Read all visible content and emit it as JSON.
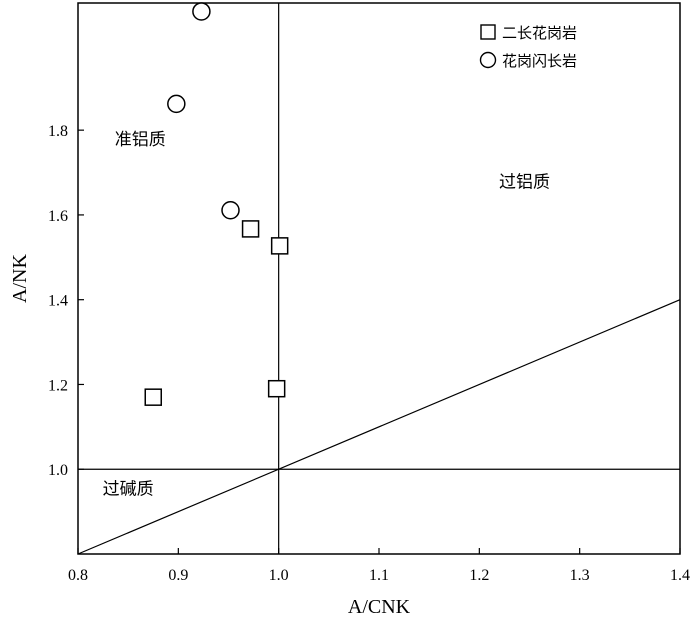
{
  "chart_data": {
    "type": "scatter",
    "xlabel": "A/CNK",
    "ylabel": "A/NK",
    "xlim": [
      0.8,
      1.4
    ],
    "ylim": [
      0.8,
      2.1
    ],
    "x_ticks": [
      0.8,
      0.9,
      1.0,
      1.1,
      1.2,
      1.3,
      1.4
    ],
    "x_tick_labels": [
      "0.8",
      "0.9",
      "1.0",
      "1.1",
      "1.2",
      "1.3",
      "1.4"
    ],
    "y_ticks": [
      1.0,
      1.2,
      1.4,
      1.6,
      1.8
    ],
    "y_tick_labels": [
      "1.0",
      "1.2",
      "1.4",
      "1.6",
      "1.8"
    ],
    "grid": false,
    "legend_position": "top-right",
    "series": [
      {
        "name": "二长花岗岩",
        "marker": "square",
        "points": [
          {
            "x": 0.875,
            "y": 1.17
          },
          {
            "x": 0.972,
            "y": 1.567
          },
          {
            "x": 1.001,
            "y": 1.527
          },
          {
            "x": 0.998,
            "y": 1.19
          }
        ]
      },
      {
        "name": "花岗闪长岩",
        "marker": "circle",
        "points": [
          {
            "x": 0.923,
            "y": 2.08
          },
          {
            "x": 0.898,
            "y": 1.862
          },
          {
            "x": 0.952,
            "y": 1.611
          }
        ]
      }
    ],
    "reference_lines": [
      {
        "from": [
          1.0,
          0.8
        ],
        "to": [
          1.0,
          2.1
        ]
      },
      {
        "from": [
          0.8,
          1.0
        ],
        "to": [
          1.4,
          1.0
        ]
      },
      {
        "from": [
          0.8,
          0.8
        ],
        "to": [
          1.4,
          1.4
        ]
      }
    ],
    "region_labels": [
      {
        "text": "准铝质",
        "x": 0.862,
        "y": 1.765
      },
      {
        "text": "过铝质",
        "x": 1.245,
        "y": 1.665
      },
      {
        "text": "过碱质",
        "x": 0.85,
        "y": 0.94
      }
    ]
  }
}
